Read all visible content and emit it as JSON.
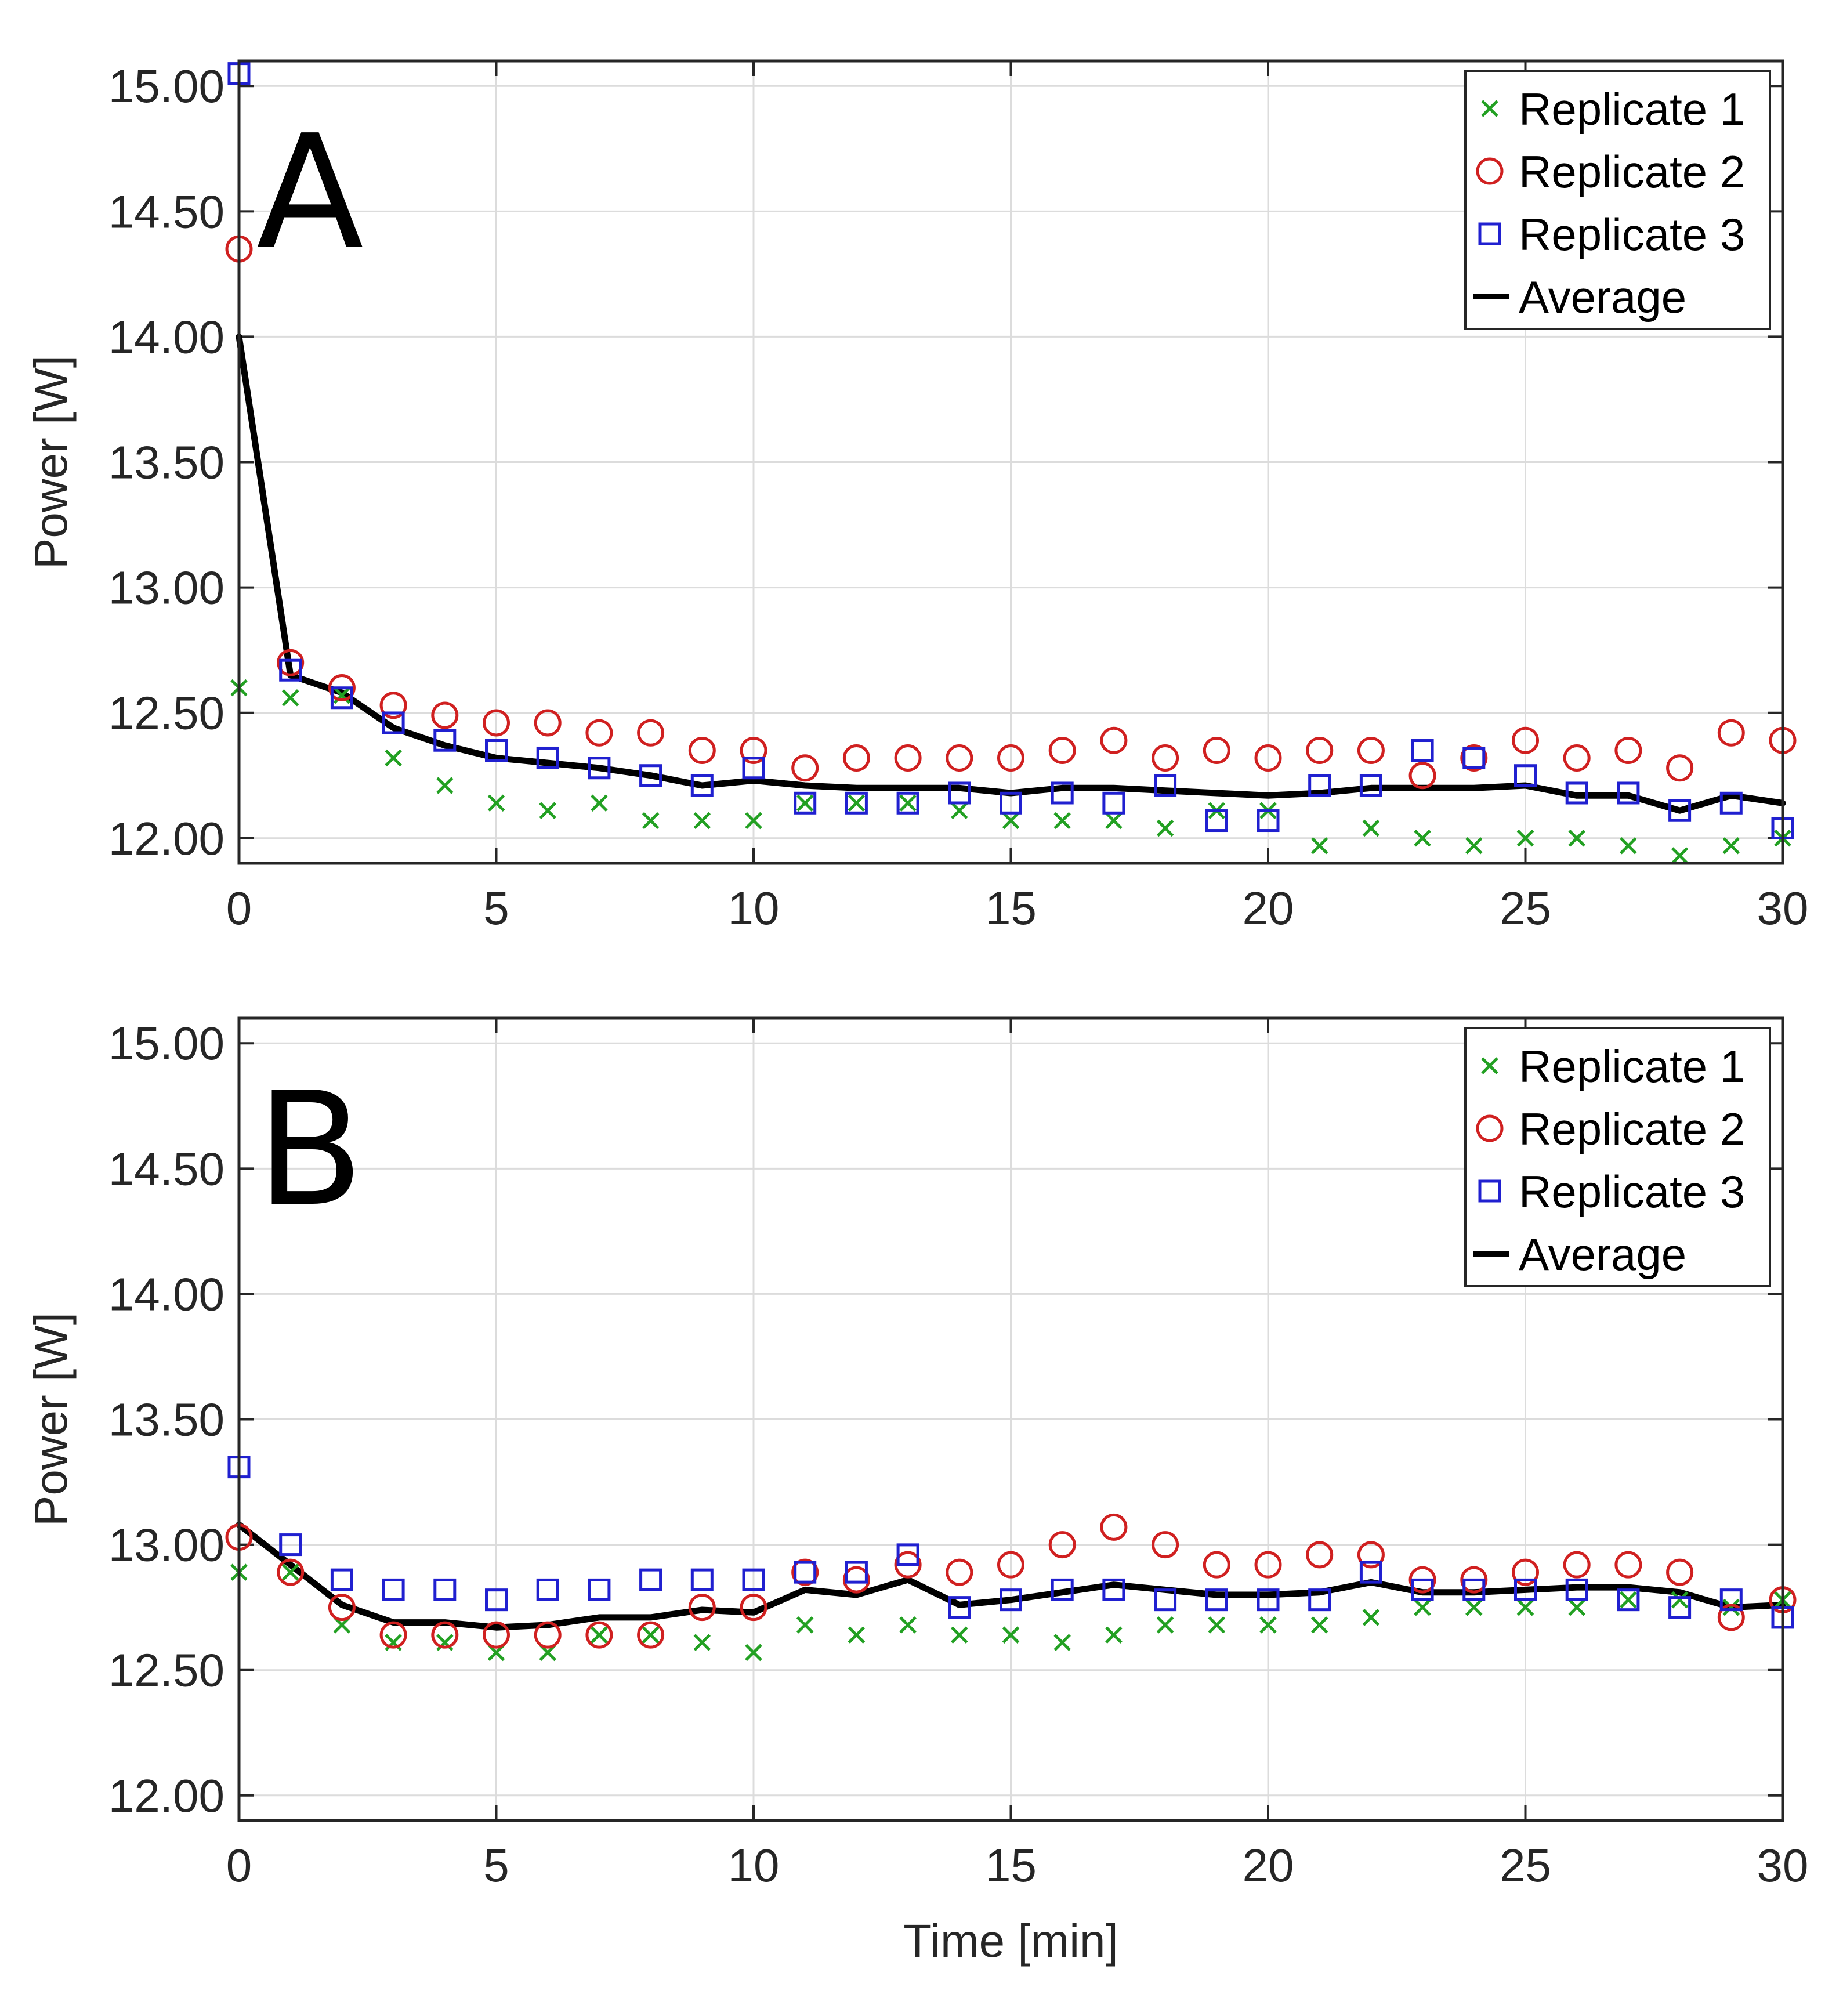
{
  "chart_data": [
    {
      "type": "scatter",
      "panel_label": "A",
      "title": "",
      "xlabel": "",
      "ylabel": "Power [W]",
      "xlim": [
        0,
        30
      ],
      "ylim": [
        11.9,
        15.1
      ],
      "xticks": [
        0,
        5,
        10,
        15,
        20,
        25,
        30
      ],
      "xtick_labels": [
        "0",
        "5",
        "10",
        "15",
        "20",
        "25",
        "30"
      ],
      "yticks": [
        12.0,
        12.5,
        13.0,
        13.5,
        14.0,
        14.5,
        15.0
      ],
      "ytick_labels": [
        "12.00",
        "12.50",
        "13.00",
        "13.50",
        "14.00",
        "14.50",
        "15.00"
      ],
      "grid": true,
      "legend_position": "top-right",
      "x": [
        0,
        1,
        2,
        3,
        4,
        5,
        6,
        7,
        8,
        9,
        10,
        11,
        12,
        13,
        14,
        15,
        16,
        17,
        18,
        19,
        20,
        21,
        22,
        23,
        24,
        25,
        26,
        27,
        28,
        29,
        30
      ],
      "series": [
        {
          "name": "Replicate 1",
          "marker": "x",
          "color": "#22a022",
          "values": [
            12.6,
            12.56,
            12.57,
            12.32,
            12.21,
            12.14,
            12.11,
            12.14,
            12.07,
            12.07,
            12.07,
            12.14,
            12.14,
            12.14,
            12.11,
            12.07,
            12.07,
            12.07,
            12.04,
            12.11,
            12.11,
            11.97,
            12.04,
            12.0,
            11.97,
            12.0,
            12.0,
            11.97,
            11.93,
            11.97,
            12.0
          ]
        },
        {
          "name": "Replicate 2",
          "marker": "circle",
          "color": "#d02020",
          "values": [
            14.35,
            12.7,
            12.6,
            12.53,
            12.49,
            12.46,
            12.46,
            12.42,
            12.42,
            12.35,
            12.35,
            12.28,
            12.32,
            12.32,
            12.32,
            12.32,
            12.35,
            12.39,
            12.32,
            12.35,
            12.32,
            12.35,
            12.35,
            12.25,
            12.32,
            12.39,
            12.32,
            12.35,
            12.28,
            12.42,
            12.39
          ]
        },
        {
          "name": "Replicate 3",
          "marker": "square",
          "color": "#2020d0",
          "values": [
            15.05,
            12.67,
            12.56,
            12.46,
            12.39,
            12.35,
            12.32,
            12.28,
            12.25,
            12.21,
            12.28,
            12.14,
            12.14,
            12.14,
            12.18,
            12.14,
            12.18,
            12.14,
            12.21,
            12.07,
            12.07,
            12.21,
            12.21,
            12.35,
            12.32,
            12.25,
            12.18,
            12.18,
            12.11,
            12.14,
            12.04
          ]
        },
        {
          "name": "Average",
          "marker": "line",
          "color": "#000000",
          "values": [
            14.0,
            12.65,
            12.58,
            12.44,
            12.37,
            12.32,
            12.3,
            12.28,
            12.25,
            12.21,
            12.23,
            12.21,
            12.2,
            12.2,
            12.2,
            12.18,
            12.2,
            12.2,
            12.19,
            12.18,
            12.17,
            12.18,
            12.2,
            12.2,
            12.2,
            12.21,
            12.17,
            12.17,
            12.11,
            12.17,
            12.14
          ]
        }
      ]
    },
    {
      "type": "scatter",
      "panel_label": "B",
      "title": "",
      "xlabel": "Time [min]",
      "ylabel": "Power [W]",
      "xlim": [
        0,
        30
      ],
      "ylim": [
        11.9,
        15.1
      ],
      "xticks": [
        0,
        5,
        10,
        15,
        20,
        25,
        30
      ],
      "xtick_labels": [
        "0",
        "5",
        "10",
        "15",
        "20",
        "25",
        "30"
      ],
      "yticks": [
        12.0,
        12.5,
        13.0,
        13.5,
        14.0,
        14.5,
        15.0
      ],
      "ytick_labels": [
        "12.00",
        "12.50",
        "13.00",
        "13.50",
        "14.00",
        "14.50",
        "15.00"
      ],
      "grid": true,
      "legend_position": "top-right",
      "x": [
        0,
        1,
        2,
        3,
        4,
        5,
        6,
        7,
        8,
        9,
        10,
        11,
        12,
        13,
        14,
        15,
        16,
        17,
        18,
        19,
        20,
        21,
        22,
        23,
        24,
        25,
        26,
        27,
        28,
        29,
        30
      ],
      "series": [
        {
          "name": "Replicate 1",
          "marker": "x",
          "color": "#22a022",
          "values": [
            12.89,
            12.89,
            12.68,
            12.61,
            12.61,
            12.57,
            12.57,
            12.64,
            12.64,
            12.61,
            12.57,
            12.68,
            12.64,
            12.68,
            12.64,
            12.64,
            12.61,
            12.64,
            12.68,
            12.68,
            12.68,
            12.68,
            12.71,
            12.75,
            12.75,
            12.75,
            12.75,
            12.78,
            12.78,
            12.75,
            12.78
          ]
        },
        {
          "name": "Replicate 2",
          "marker": "circle",
          "color": "#d02020",
          "values": [
            13.03,
            12.89,
            12.75,
            12.64,
            12.64,
            12.64,
            12.64,
            12.64,
            12.64,
            12.75,
            12.75,
            12.89,
            12.86,
            12.92,
            12.89,
            12.92,
            13.0,
            13.07,
            13.0,
            12.92,
            12.92,
            12.96,
            12.96,
            12.86,
            12.86,
            12.89,
            12.92,
            12.92,
            12.89,
            12.71,
            12.78
          ]
        },
        {
          "name": "Replicate 3",
          "marker": "square",
          "color": "#2020d0",
          "values": [
            13.31,
            13.0,
            12.86,
            12.82,
            12.82,
            12.78,
            12.82,
            12.82,
            12.86,
            12.86,
            12.86,
            12.89,
            12.89,
            12.96,
            12.75,
            12.78,
            12.82,
            12.82,
            12.78,
            12.78,
            12.78,
            12.78,
            12.89,
            12.82,
            12.82,
            12.82,
            12.82,
            12.78,
            12.75,
            12.78,
            12.71
          ]
        },
        {
          "name": "Average",
          "marker": "line",
          "color": "#000000",
          "values": [
            13.08,
            12.92,
            12.76,
            12.69,
            12.69,
            12.67,
            12.68,
            12.71,
            12.71,
            12.74,
            12.73,
            12.82,
            12.8,
            12.86,
            12.76,
            12.78,
            12.81,
            12.84,
            12.82,
            12.8,
            12.8,
            12.81,
            12.85,
            12.81,
            12.81,
            12.82,
            12.83,
            12.83,
            12.81,
            12.75,
            12.76
          ]
        }
      ]
    }
  ]
}
